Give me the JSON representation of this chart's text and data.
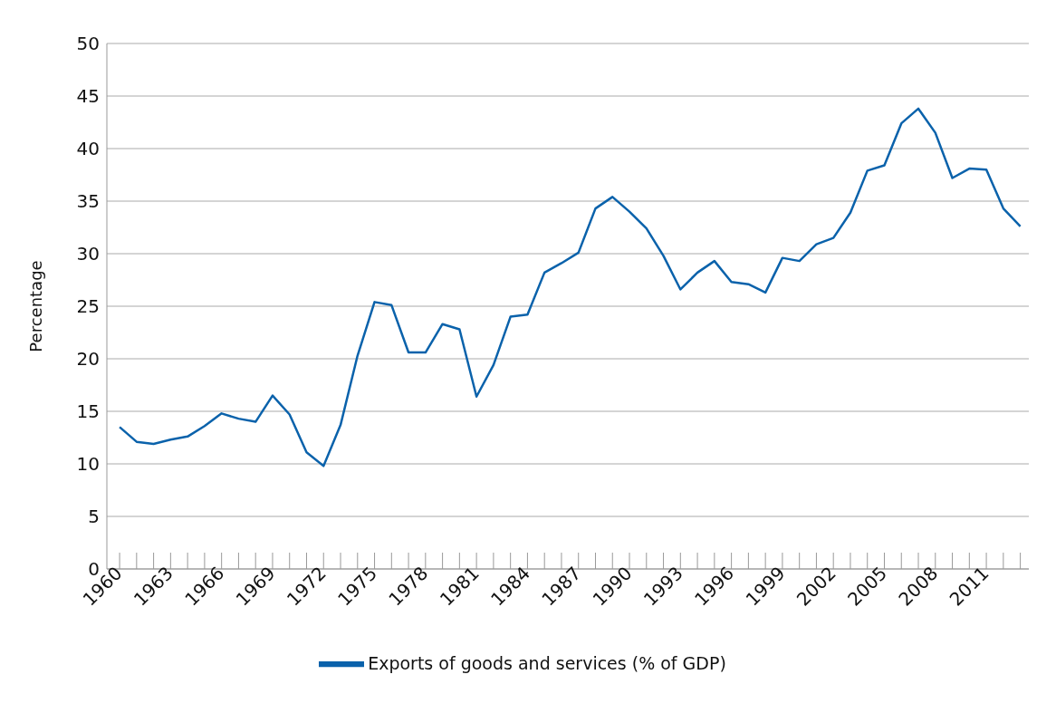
{
  "chart_data": {
    "type": "line",
    "ylabel": "Percentage",
    "categories": [
      "1960",
      null,
      null,
      "1963",
      null,
      null,
      "1966",
      null,
      null,
      "1969",
      null,
      null,
      "1972",
      null,
      null,
      "1975",
      null,
      null,
      "1978",
      null,
      null,
      "1981",
      null,
      null,
      "1984",
      null,
      null,
      "1987",
      null,
      null,
      "1990",
      null,
      null,
      "1993",
      null,
      null,
      "1996",
      null,
      null,
      "1999",
      null,
      null,
      "2002",
      null,
      null,
      "2005",
      null,
      null,
      "2008",
      null,
      null,
      "2011",
      null,
      null
    ],
    "series": [
      {
        "name": "Exports of goods and services (% of GDP)",
        "color": "#0a62ab",
        "values": [
          13.5,
          12.1,
          11.9,
          12.3,
          12.6,
          13.6,
          14.8,
          14.3,
          14.0,
          16.5,
          14.7,
          11.1,
          9.8,
          13.7,
          20.3,
          25.4,
          25.1,
          20.6,
          20.6,
          23.3,
          22.8,
          16.4,
          19.4,
          24.0,
          24.2,
          28.2,
          29.1,
          30.1,
          34.3,
          35.4,
          34.0,
          32.4,
          29.8,
          26.6,
          28.2,
          29.3,
          27.3,
          27.1,
          26.3,
          29.6,
          29.3,
          30.9,
          31.5,
          33.9,
          37.9,
          38.4,
          42.4,
          43.8,
          41.5,
          37.2,
          38.1,
          38.0,
          34.3,
          32.6
        ]
      }
    ],
    "ylim": [
      0,
      50
    ],
    "yticks": [
      0,
      5,
      10,
      15,
      20,
      25,
      30,
      35,
      40,
      45,
      50
    ],
    "grid": "y",
    "legend": "bottom",
    "marker": "none",
    "line_style": "solid"
  }
}
